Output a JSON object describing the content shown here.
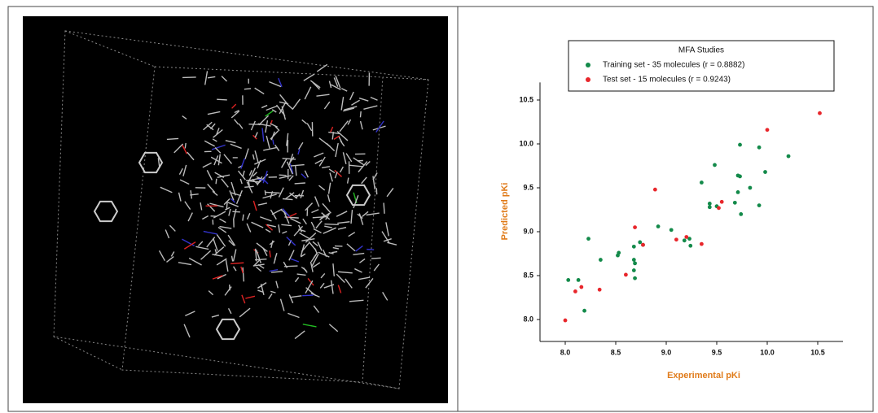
{
  "chart_data": {
    "type": "scatter",
    "legend_title": "MFA Studies",
    "xlabel": "Experimental pKi",
    "ylabel": "Predicted pKi",
    "xlim": [
      7.75,
      10.75
    ],
    "ylim": [
      7.75,
      10.7
    ],
    "xticks": [
      {
        "value": 8,
        "label": "8.0"
      },
      8.5,
      {
        "value": 9,
        "label": "9.0"
      },
      9.5,
      {
        "value": 10,
        "label": "10.0"
      },
      10.5
    ],
    "yticks": [
      {
        "value": 8,
        "label": "8.0"
      },
      8.5,
      {
        "value": 9,
        "label": "9.0"
      },
      9.5,
      {
        "value": 10,
        "label": "10.0"
      },
      10.5
    ],
    "series": [
      {
        "name": "Training set - 35 molecules (r = 0.8882)",
        "color": "#138a4a",
        "x": [
          8.03,
          8.23,
          8.13,
          8.19,
          8.35,
          8.52,
          8.53,
          8.68,
          8.69,
          8.68,
          8.69,
          8.68,
          8.74,
          8.77,
          8.92,
          9.05,
          9.18,
          9.24,
          9.23,
          9.35,
          9.43,
          9.43,
          9.48,
          9.5,
          9.71,
          9.68,
          9.71,
          9.73,
          9.74,
          9.73,
          9.83,
          9.92,
          9.92,
          9.98,
          10.21
        ],
        "values": [
          8.45,
          8.92,
          8.45,
          8.1,
          8.68,
          8.73,
          8.76,
          8.68,
          8.64,
          8.56,
          8.47,
          8.83,
          8.88,
          8.85,
          9.06,
          9.02,
          8.9,
          8.84,
          8.92,
          9.56,
          9.32,
          9.28,
          9.76,
          9.29,
          9.64,
          9.33,
          9.45,
          9.99,
          9.2,
          9.63,
          9.5,
          9.96,
          9.3,
          9.68,
          9.86
        ]
      },
      {
        "name": "Test set - 15 molecules (r = 0.9243)",
        "color": "#e8262b",
        "x": [
          8.0,
          8.1,
          8.16,
          8.34,
          8.6,
          8.69,
          8.77,
          8.89,
          9.1,
          9.2,
          9.35,
          9.52,
          9.55,
          10.0,
          10.52
        ],
        "values": [
          7.99,
          8.32,
          8.37,
          8.34,
          8.51,
          9.05,
          8.85,
          9.48,
          8.91,
          8.94,
          8.86,
          9.27,
          9.34,
          10.16,
          10.35
        ]
      }
    ]
  }
}
